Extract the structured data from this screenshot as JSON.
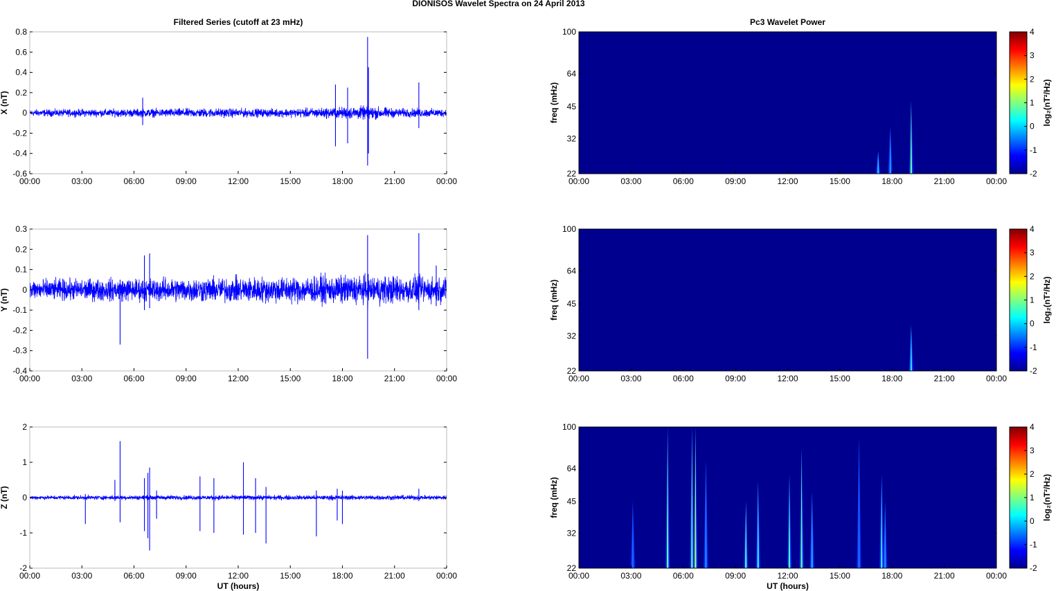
{
  "figure_title": "DIONISOS Wavelet Spectra on 24 April     2013",
  "chart_data": [
    {
      "type": "line",
      "title": "Filtered Series (cutoff at 23 mHz)",
      "ylabel": "X (nT)",
      "xlabel": "",
      "color": "#0000ff",
      "xlim": [
        0,
        24
      ],
      "ylim": [
        -0.6,
        0.8
      ],
      "yticks": [
        "0.8",
        "0.6",
        "0.4",
        "0.2",
        "0",
        "-0.2",
        "-0.4",
        "-0.6"
      ],
      "yvals": [
        0.8,
        0.6,
        0.4,
        0.2,
        0,
        -0.2,
        -0.4,
        -0.6
      ],
      "xticks": [
        "00:00",
        "03:00",
        "06:00",
        "09:00",
        "12:00",
        "15:00",
        "18:00",
        "21:00",
        "00:00"
      ],
      "noise": [
        [
          0,
          0.03
        ],
        [
          6,
          0.035
        ],
        [
          11,
          0.04
        ],
        [
          14,
          0.035
        ],
        [
          17,
          0.045
        ],
        [
          19.5,
          0.06
        ],
        [
          21,
          0.04
        ],
        [
          24,
          0.035
        ]
      ],
      "spikes": [
        [
          17.6,
          0.28,
          -0.33
        ],
        [
          18.3,
          0.25,
          -0.3
        ],
        [
          19.45,
          0.75,
          -0.52
        ],
        [
          19.5,
          0.45,
          -0.4
        ],
        [
          22.4,
          0.3,
          -0.15
        ],
        [
          6.5,
          0.15,
          -0.12
        ]
      ]
    },
    {
      "type": "line",
      "title": "",
      "ylabel": "Y (nT)",
      "xlabel": "",
      "color": "#0000ff",
      "xlim": [
        0,
        24
      ],
      "ylim": [
        -0.4,
        0.3
      ],
      "yticks": [
        "0.3",
        "0.2",
        "0.1",
        "0",
        "-0.1",
        "-0.2",
        "-0.3",
        "-0.4"
      ],
      "yvals": [
        0.3,
        0.2,
        0.1,
        0,
        -0.1,
        -0.2,
        -0.3,
        -0.4
      ],
      "xticks": [
        "00:00",
        "03:00",
        "06:00",
        "09:00",
        "12:00",
        "15:00",
        "18:00",
        "21:00",
        "00:00"
      ],
      "noise": [
        [
          0,
          0.045
        ],
        [
          6,
          0.05
        ],
        [
          12,
          0.055
        ],
        [
          17,
          0.06
        ],
        [
          19.5,
          0.065
        ],
        [
          24,
          0.055
        ]
      ],
      "spikes": [
        [
          5.2,
          0.05,
          -0.27
        ],
        [
          6.6,
          0.17,
          -0.1
        ],
        [
          6.9,
          0.18,
          -0.09
        ],
        [
          19.45,
          0.27,
          -0.34
        ],
        [
          22.4,
          0.28,
          -0.1
        ],
        [
          23.4,
          0.12,
          -0.08
        ]
      ]
    },
    {
      "type": "line",
      "title": "",
      "ylabel": "Z (nT)",
      "xlabel": "UT (hours)",
      "color": "#0000ff",
      "xlim": [
        0,
        24
      ],
      "ylim": [
        -2,
        2
      ],
      "yticks": [
        "2",
        "1",
        "0",
        "-1",
        "-2"
      ],
      "yvals": [
        2,
        1,
        0,
        -1,
        -2
      ],
      "xticks": [
        "00:00",
        "03:00",
        "06:00",
        "09:00",
        "12:00",
        "15:00",
        "18:00",
        "21:00",
        "00:00"
      ],
      "noise": [
        [
          0,
          0.05
        ],
        [
          12,
          0.06
        ],
        [
          24,
          0.06
        ]
      ],
      "spikes": [
        [
          3.2,
          0.1,
          -0.75
        ],
        [
          4.9,
          0.5,
          -0.1
        ],
        [
          5.2,
          1.6,
          -0.7
        ],
        [
          6.6,
          0.55,
          -0.95
        ],
        [
          6.8,
          0.7,
          -1.15
        ],
        [
          6.9,
          0.85,
          -1.5
        ],
        [
          7.3,
          0.2,
          -0.6
        ],
        [
          9.8,
          0.6,
          -0.95
        ],
        [
          10.6,
          0.55,
          -1.0
        ],
        [
          12.3,
          1.0,
          -1.05
        ],
        [
          13.0,
          0.55,
          -1.0
        ],
        [
          13.6,
          0.3,
          -1.3
        ],
        [
          16.5,
          0.2,
          -1.1
        ],
        [
          17.7,
          0.25,
          -0.65
        ],
        [
          18.0,
          0.2,
          -0.75
        ],
        [
          22.4,
          0.25,
          -0.1
        ]
      ]
    },
    {
      "type": "heatmap",
      "title": "Pc3 Wavelet Power",
      "ylabel": "freq (mHz)",
      "xlabel": "",
      "xlim": [
        0,
        24
      ],
      "ylim": [
        22,
        100
      ],
      "yscale": "log",
      "yticks": [
        "100",
        "64",
        "45",
        "32",
        "22"
      ],
      "yvals": [
        100,
        64,
        45,
        32,
        22
      ],
      "xticks": [
        "00:00",
        "03:00",
        "06:00",
        "09:00",
        "12:00",
        "15:00",
        "18:00",
        "21:00",
        "00:00"
      ],
      "background": "#00008f",
      "events": [
        [
          17.2,
          28,
          "#25c9ff"
        ],
        [
          17.9,
          36,
          "#22a0ff"
        ],
        [
          19.1,
          48,
          "#5fff9f"
        ]
      ],
      "colorbar": {
        "label": "log₂(nT²/Hz)",
        "ticks": [
          "4",
          "3",
          "2",
          "1",
          "0",
          "-1",
          "-2"
        ],
        "range": [
          -2,
          4
        ]
      }
    },
    {
      "type": "heatmap",
      "title": "",
      "ylabel": "freq (mHz)",
      "xlabel": "",
      "xlim": [
        0,
        24
      ],
      "ylim": [
        22,
        100
      ],
      "yscale": "log",
      "yticks": [
        "100",
        "64",
        "45",
        "32",
        "22"
      ],
      "yvals": [
        100,
        64,
        45,
        32,
        22
      ],
      "xticks": [
        "00:00",
        "03:00",
        "06:00",
        "09:00",
        "12:00",
        "15:00",
        "18:00",
        "21:00",
        "00:00"
      ],
      "background": "#00008f",
      "events": [
        [
          19.1,
          36,
          "#2fe0ff"
        ]
      ],
      "colorbar": {
        "label": "log₂(nT²/Hz)",
        "ticks": [
          "4",
          "3",
          "2",
          "1",
          "0",
          "-1",
          "-2"
        ],
        "range": [
          -2,
          4
        ]
      }
    },
    {
      "type": "heatmap",
      "title": "",
      "ylabel": "freq (mHz)",
      "xlabel": "UT (hours)",
      "xlim": [
        0,
        24
      ],
      "ylim": [
        22,
        100
      ],
      "yscale": "log",
      "yticks": [
        "100",
        "64",
        "45",
        "32",
        "22"
      ],
      "yvals": [
        100,
        64,
        45,
        32,
        22
      ],
      "xticks": [
        "00:00",
        "03:00",
        "06:00",
        "09:00",
        "12:00",
        "15:00",
        "18:00",
        "21:00",
        "00:00"
      ],
      "background": "#00008f",
      "events": [
        [
          3.1,
          45,
          "#1a6bff"
        ],
        [
          5.1,
          100,
          "#6bffb0"
        ],
        [
          6.5,
          100,
          "#5fffb5"
        ],
        [
          6.7,
          100,
          "#9fff70"
        ],
        [
          7.3,
          70,
          "#2090ff"
        ],
        [
          9.6,
          45,
          "#58ffbf"
        ],
        [
          10.3,
          56,
          "#40f0ff"
        ],
        [
          12.1,
          60,
          "#4fffcf"
        ],
        [
          12.8,
          80,
          "#5fffaa"
        ],
        [
          13.4,
          50,
          "#25b0ff"
        ],
        [
          16.1,
          90,
          "#2070ff"
        ],
        [
          17.4,
          60,
          "#40e0ff"
        ],
        [
          17.6,
          45,
          "#2590ff"
        ]
      ],
      "colorbar": {
        "label": "log₂(nT²/Hz)",
        "ticks": [
          "4",
          "3",
          "2",
          "1",
          "0",
          "-1",
          "-2"
        ],
        "range": [
          -2,
          4
        ]
      }
    }
  ]
}
